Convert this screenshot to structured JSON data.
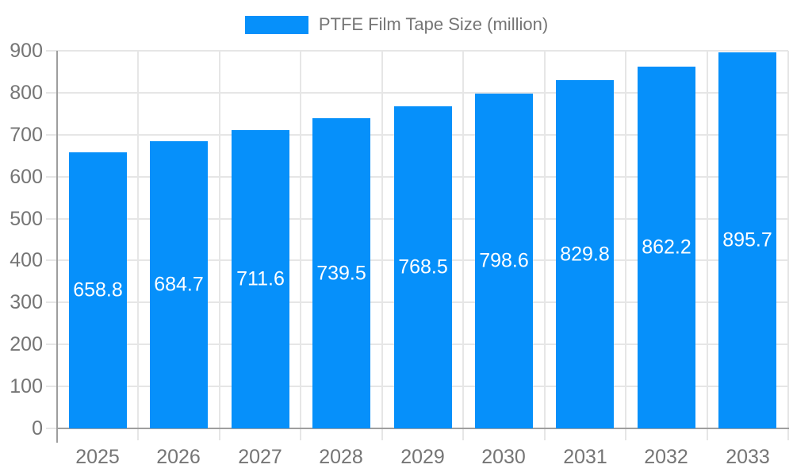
{
  "chart_data": {
    "type": "bar",
    "title": "PTFE Film Tape Size (million)",
    "categories": [
      "2025",
      "2026",
      "2027",
      "2028",
      "2029",
      "2030",
      "2031",
      "2032",
      "2033"
    ],
    "values": [
      658.8,
      684.7,
      711.6,
      739.5,
      768.5,
      798.6,
      829.8,
      862.2,
      895.7
    ],
    "value_labels": [
      "658.8",
      "684.7",
      "711.6",
      "739.5",
      "768.5",
      "798.6",
      "829.8",
      "862.2",
      "895.7"
    ],
    "xlabel": "",
    "ylabel": "",
    "ylim": [
      0,
      900
    ],
    "yticks": [
      0,
      100,
      200,
      300,
      400,
      500,
      600,
      700,
      800,
      900
    ],
    "grid": true,
    "legend_position": "top",
    "colors": {
      "bar": "#0690fa",
      "value_label": "#ffffff",
      "axis_text": "#757575",
      "axis_line": "#9e9e9e",
      "gridline": "#e6e6e6",
      "background": "#ffffff"
    }
  }
}
